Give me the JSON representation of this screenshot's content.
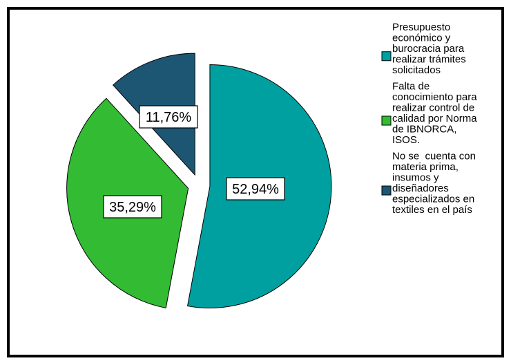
{
  "chart_data": {
    "type": "pie",
    "title": "",
    "categories": [
      [
        "Presupuesto",
        "económico y",
        "burocracia para",
        "realizar trámites",
        "solicitados"
      ],
      [
        "Falta de",
        "conocimiento para",
        "realizar control de",
        "calidad por Norma",
        "de IBNORCA,",
        "ISOS."
      ],
      [
        "No se  cuenta con",
        "materia prima,",
        "insumos y",
        "diseñadores",
        "especializados en",
        "textiles en el país"
      ]
    ],
    "values": [
      52.94,
      35.29,
      11.76
    ],
    "labels": [
      "52,94%",
      "35,29%",
      "11,76%"
    ],
    "colors": [
      "#00A0A0",
      "#33BB33",
      "#1C5673"
    ],
    "exploded": true,
    "legend_position": "right"
  }
}
